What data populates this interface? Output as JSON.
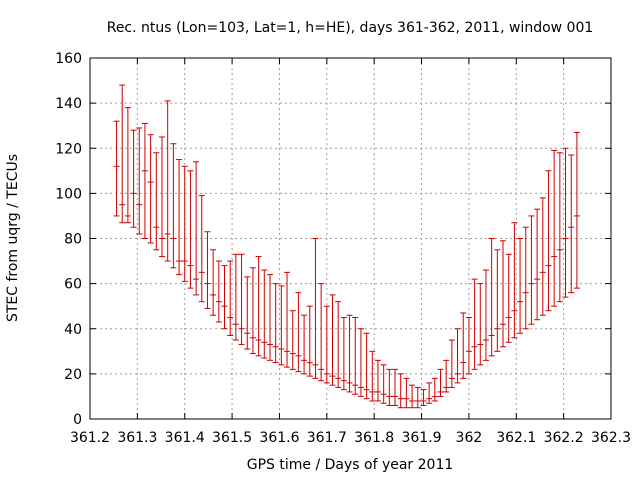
{
  "chart_data": {
    "type": "errorbar",
    "title": "Rec. ntus (Lon=103, Lat=1, h=HE), days 361-362, 2011, window 001",
    "xlabel": "GPS time / Days of year 2011",
    "ylabel": "STEC from uqrg / TECUs",
    "xlim": [
      361.2,
      362.3
    ],
    "ylim": [
      0,
      160
    ],
    "xticks": [
      "361.2",
      "361.3",
      "361.4",
      "361.5",
      "361.6",
      "361.7",
      "361.8",
      "361.9",
      "362",
      "362.1",
      "362.2",
      "362.3"
    ],
    "yticks": [
      "0",
      "20",
      "40",
      "60",
      "80",
      "100",
      "120",
      "140",
      "160"
    ],
    "grid": true,
    "color": "#cc0000",
    "series": [
      {
        "x": [
          361.256,
          361.268,
          361.28,
          361.292,
          361.304,
          361.316,
          361.328,
          361.34,
          361.352,
          361.364,
          361.376,
          361.388,
          361.4,
          361.412,
          361.424,
          361.436,
          361.448,
          361.46,
          361.472,
          361.484,
          361.496,
          361.508,
          361.52,
          361.532,
          361.544,
          361.556,
          361.568,
          361.58,
          361.592,
          361.604,
          361.616,
          361.628,
          361.64,
          361.652,
          361.664,
          361.676,
          361.688,
          361.7,
          361.712,
          361.724,
          361.736,
          361.748,
          361.76,
          361.772,
          361.784,
          361.796,
          361.808,
          361.82,
          361.832,
          361.844,
          361.856,
          361.868,
          361.88,
          361.892,
          361.904,
          361.916,
          361.928,
          361.94,
          361.952,
          361.964,
          361.976,
          361.988,
          362.0,
          362.012,
          362.024,
          362.036,
          362.048,
          362.06,
          362.072,
          362.084,
          362.096,
          362.108,
          362.12,
          362.132,
          362.144,
          362.156,
          362.168,
          362.18,
          362.192,
          362.204,
          362.216,
          362.228
        ],
        "y": [
          112,
          95,
          90,
          100,
          95,
          110,
          105,
          85,
          80,
          82,
          80,
          70,
          70,
          68,
          62,
          65,
          60,
          55,
          52,
          50,
          45,
          42,
          40,
          38,
          36,
          35,
          34,
          33,
          32,
          31,
          30,
          29,
          28,
          26,
          25,
          24,
          22,
          20,
          19,
          18,
          17,
          16,
          15,
          14,
          13,
          12,
          12,
          11,
          10,
          10,
          9,
          9,
          8,
          8,
          8,
          9,
          10,
          12,
          14,
          18,
          20,
          25,
          30,
          32,
          33,
          35,
          37,
          40,
          42,
          45,
          48,
          52,
          56,
          60,
          62,
          65,
          68,
          72,
          75,
          80,
          85,
          90
        ],
        "upper": [
          132,
          148,
          138,
          128,
          129,
          131,
          126,
          118,
          125,
          141,
          122,
          115,
          112,
          110,
          114,
          99,
          83,
          75,
          70,
          68,
          70,
          73,
          73,
          63,
          67,
          72,
          66,
          64,
          60,
          59,
          65,
          48,
          56,
          46,
          50,
          80,
          60,
          50,
          55,
          52,
          45,
          46,
          45,
          40,
          38,
          30,
          26,
          24,
          22,
          22,
          20,
          18,
          15,
          14,
          13,
          16,
          18,
          22,
          26,
          35,
          40,
          47,
          45,
          62,
          60,
          66,
          80,
          75,
          79,
          73,
          87,
          80,
          85,
          90,
          93,
          98,
          110,
          119,
          118,
          120,
          117,
          127
        ],
        "lower": [
          90,
          87,
          87,
          85,
          82,
          80,
          78,
          75,
          72,
          70,
          67,
          64,
          61,
          58,
          55,
          52,
          49,
          46,
          43,
          40,
          37,
          35,
          33,
          31,
          29,
          28,
          27,
          26,
          25,
          24,
          23,
          22,
          21,
          20,
          19,
          18,
          17,
          16,
          15,
          14,
          13,
          12,
          11,
          10,
          9,
          8,
          8,
          7,
          6,
          6,
          5,
          5,
          5,
          5,
          6,
          7,
          8,
          10,
          12,
          14,
          16,
          18,
          20,
          22,
          24,
          26,
          28,
          30,
          32,
          34,
          36,
          38,
          40,
          42,
          44,
          46,
          48,
          50,
          52,
          54,
          56,
          58
        ]
      }
    ]
  }
}
